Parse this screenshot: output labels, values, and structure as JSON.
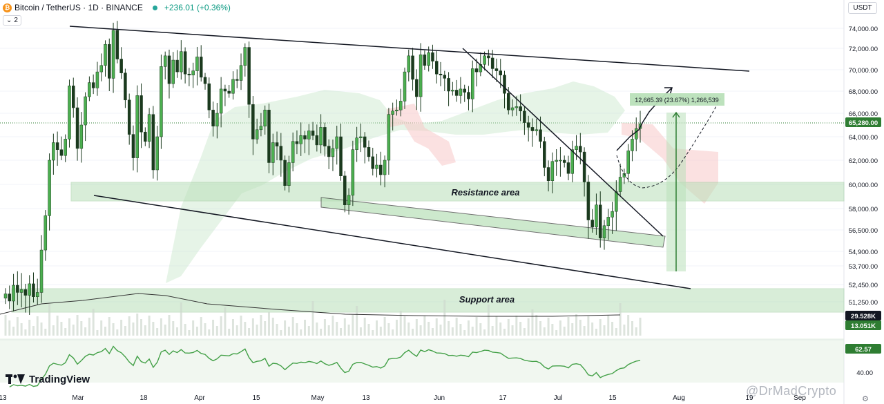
{
  "header": {
    "symbol": "Bitcoin / TetherUS · 1D · BINANCE",
    "change": "+236.01 (+0.36%)",
    "indicator_count": "2",
    "currency": "USDT",
    "logo_text": "TradingView",
    "watermark": "@DrMadCrypto"
  },
  "colors": {
    "up": "#26a69a",
    "down": "#1e5e2e",
    "bull_candle": "#4caf50",
    "bear_candle": "#1b3a1e",
    "zone_fill": "#b9e0b9",
    "cloud_green": "#c8e6c9",
    "cloud_red": "#f8c9c9",
    "price_tag": "#2e7d32",
    "rsi_line": "#43a047"
  },
  "chart_data": {
    "type": "candlestick",
    "pair": "BTCUSDT",
    "timeframe": "1D",
    "exchange": "BINANCE",
    "yaxis_ticks": [
      74000,
      72000,
      70000,
      68000,
      66000,
      64000,
      62000,
      60000,
      58000,
      56500,
      54900,
      53700,
      52450,
      51250
    ],
    "xaxis_ticks": [
      "13",
      "Mar",
      "18",
      "Apr",
      "15",
      "May",
      "13",
      "Jun",
      "17",
      "Jul",
      "15",
      "Aug",
      "19",
      "Sep"
    ],
    "last_price": "65,280.00",
    "volume_labels": [
      "29.528K",
      "13.051K"
    ],
    "rsi_value": "62.57",
    "rsi_ticks": [
      "40.00"
    ],
    "close_series": [
      51800,
      51300,
      52400,
      51900,
      52100,
      51700,
      52500,
      51600,
      51900,
      55000,
      57500,
      62000,
      63500,
      62900,
      62400,
      63800,
      68500,
      66500,
      63000,
      65000,
      67500,
      68800,
      68300,
      69800,
      70400,
      72400,
      69200,
      73800,
      71000,
      69700,
      67200,
      64200,
      62200,
      67600,
      64400,
      63600,
      65900,
      61200,
      64000,
      70300,
      71300,
      68700,
      70900,
      69800,
      71700,
      69600,
      69500,
      69900,
      71200,
      69300,
      68700,
      66300,
      64900,
      66000,
      68200,
      68000,
      67800,
      69100,
      69000,
      70400,
      72100,
      66800,
      63800,
      64600,
      64900,
      66300,
      61800,
      63500,
      63200,
      62000,
      59900,
      61800,
      63600,
      63400,
      64100,
      63800,
      64500,
      64100,
      63300,
      64800,
      63200,
      62300,
      63000,
      64000,
      60700,
      58300,
      59100,
      62900,
      63900,
      64000,
      63100,
      62300,
      61300,
      61600,
      60800,
      62000,
      65900,
      66200,
      66300,
      67100,
      69800,
      71300,
      69100,
      67500,
      71400,
      70400,
      71600,
      70800,
      69600,
      69500,
      69200,
      68000,
      68100,
      67600,
      68200,
      67900,
      67300,
      70100,
      69800,
      70500,
      71300,
      71100,
      70100,
      69900,
      69500,
      67800,
      66300,
      66500,
      66600,
      66200,
      65200,
      64800,
      64500,
      64600,
      63600,
      61400,
      60300,
      61900,
      62000,
      62000,
      61800,
      60900,
      62900,
      63200,
      62700,
      60200,
      57200,
      56700,
      58300,
      55900,
      56800,
      57400,
      57800,
      59400,
      60600,
      60900,
      62800,
      63800,
      64700,
      65100
    ]
  }
}
